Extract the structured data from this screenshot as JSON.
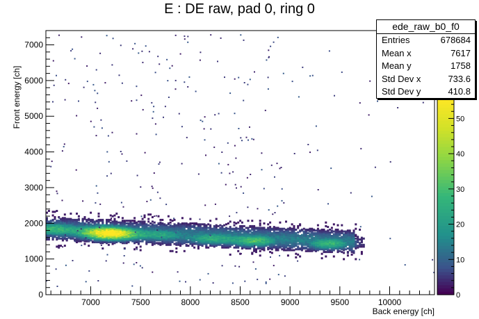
{
  "chart_data": {
    "type": "heatmap",
    "title": "E : DE raw, pad 0, ring 0",
    "xlabel": "Back energy [ch]",
    "ylabel": "Front energy [ch]",
    "xlim": [
      6550,
      10450
    ],
    "ylim": [
      0,
      7400
    ],
    "x_ticks": [
      7000,
      7500,
      8000,
      8500,
      9000,
      9500,
      10000
    ],
    "y_ticks": [
      0,
      1000,
      2000,
      3000,
      4000,
      5000,
      6000,
      7000
    ],
    "z_ticks": [
      0,
      10,
      20,
      30,
      40,
      50
    ],
    "z_range": [
      0,
      56
    ],
    "colormap": "viridis",
    "clusters": [
      {
        "x": 6620,
        "y": 1880,
        "intensity": 0.55
      },
      {
        "x": 7050,
        "y": 1800,
        "intensity": 0.5
      },
      {
        "x": 7230,
        "y": 1750,
        "intensity": 1.0
      },
      {
        "x": 7700,
        "y": 1720,
        "intensity": 0.45
      },
      {
        "x": 8200,
        "y": 1620,
        "intensity": 0.5
      },
      {
        "x": 8650,
        "y": 1560,
        "intensity": 0.6
      },
      {
        "x": 9380,
        "y": 1480,
        "intensity": 0.55
      }
    ],
    "stats": {
      "name": "ede_raw_b0_f0",
      "rows": [
        {
          "label": "Entries",
          "value": "678684"
        },
        {
          "label": "Mean x",
          "value": "7617"
        },
        {
          "label": "Mean y",
          "value": "1758"
        },
        {
          "label": "Std Dev x",
          "value": "733.6"
        },
        {
          "label": "Std Dev y",
          "value": "410.8"
        }
      ]
    }
  }
}
